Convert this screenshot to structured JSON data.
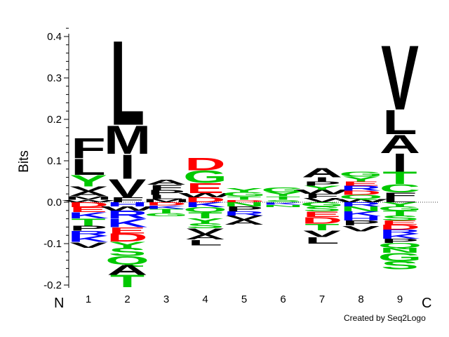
{
  "chart_data": {
    "type": "sequence-logo",
    "ylabel": "Bits",
    "ylim": [
      -0.2,
      0.4
    ],
    "yticks": [
      -0.2,
      -0.1,
      0.0,
      0.1,
      0.2,
      0.3,
      0.4
    ],
    "ytick_labels": [
      "-0.2",
      "-0.1",
      "0.0",
      "0.1",
      "0.2",
      "0.3",
      "0.4"
    ],
    "n_label": "N",
    "c_label": "C",
    "credit": "Created by Seq2Logo",
    "positions": [
      {
        "label": "1",
        "up": [
          [
            "W",
            0.006
          ],
          [
            "M",
            0.008
          ],
          [
            "A",
            0.012
          ],
          [
            "V",
            0.012
          ],
          [
            "Y",
            0.028
          ],
          [
            "L",
            0.04
          ],
          [
            "F",
            0.05
          ]
        ],
        "down": [
          [
            "D",
            -0.012
          ],
          [
            "E",
            -0.012
          ],
          [
            "K",
            -0.015
          ],
          [
            "T",
            -0.018
          ],
          [
            "P",
            -0.012
          ],
          [
            "R",
            -0.012
          ],
          [
            "K",
            -0.015
          ],
          [
            "V",
            -0.014
          ]
        ]
      },
      {
        "label": "2",
        "up": [
          [
            "F",
            0.012
          ],
          [
            "V",
            0.045
          ],
          [
            "I",
            0.06
          ],
          [
            "M",
            0.07
          ],
          [
            "L",
            0.21
          ]
        ],
        "down": [
          [
            "H",
            -0.01
          ],
          [
            "W",
            -0.01
          ],
          [
            "R",
            -0.02
          ],
          [
            "K",
            -0.02
          ],
          [
            "E",
            -0.015
          ],
          [
            "D",
            -0.02
          ],
          [
            "Y",
            -0.015
          ],
          [
            "S",
            -0.02
          ],
          [
            "Q",
            -0.02
          ],
          [
            "A",
            -0.025
          ],
          [
            "T",
            -0.03
          ]
        ]
      },
      {
        "label": "3",
        "up": [
          [
            "M",
            0.008
          ],
          [
            "L",
            0.01
          ],
          [
            "P",
            0.012
          ],
          [
            "F",
            0.012
          ],
          [
            "A",
            0.012
          ]
        ],
        "down": [
          [
            "D",
            -0.008
          ],
          [
            "K",
            -0.008
          ],
          [
            "T",
            -0.01
          ],
          [
            "G",
            -0.008
          ]
        ]
      },
      {
        "label": "4",
        "up": [
          [
            "D",
            0.012
          ],
          [
            "W",
            0.01
          ],
          [
            "E",
            0.025
          ],
          [
            "G",
            0.03
          ],
          [
            "D",
            0.03
          ]
        ],
        "down": [
          [
            "K",
            -0.012
          ],
          [
            "Q",
            -0.012
          ],
          [
            "T",
            -0.015
          ],
          [
            "Y",
            -0.012
          ],
          [
            "S",
            -0.012
          ],
          [
            "V",
            -0.015
          ],
          [
            "A",
            -0.012
          ],
          [
            "L",
            -0.014
          ]
        ]
      },
      {
        "label": "5",
        "up": [
          [
            "D",
            0.006
          ],
          [
            "T",
            0.008
          ],
          [
            "G",
            0.01
          ],
          [
            "Y",
            0.01
          ]
        ],
        "down": [
          [
            "N",
            -0.01
          ],
          [
            "P",
            -0.012
          ],
          [
            "R",
            -0.01
          ],
          [
            "V",
            -0.01
          ],
          [
            "A",
            -0.012
          ]
        ]
      },
      {
        "label": "6",
        "up": [
          [
            "S",
            0.006
          ],
          [
            "T",
            0.008
          ],
          [
            "Y",
            0.01
          ],
          [
            "G",
            0.012
          ]
        ],
        "down": [
          [
            "K",
            -0.006
          ],
          [
            "N",
            -0.006
          ]
        ]
      },
      {
        "label": "7",
        "up": [
          [
            "V",
            0.01
          ],
          [
            "F",
            0.01
          ],
          [
            "W",
            0.01
          ],
          [
            "Y",
            0.01
          ],
          [
            "P",
            0.01
          ],
          [
            "I",
            0.01
          ],
          [
            "A",
            0.022
          ]
        ],
        "down": [
          [
            "G",
            -0.01
          ],
          [
            "S",
            -0.012
          ],
          [
            "E",
            -0.014
          ],
          [
            "D",
            -0.016
          ],
          [
            "T",
            -0.016
          ],
          [
            "V",
            -0.016
          ],
          [
            "L",
            -0.016
          ]
        ]
      },
      {
        "label": "8",
        "up": [
          [
            "W",
            0.008
          ],
          [
            "Q",
            0.01
          ],
          [
            "D",
            0.01
          ],
          [
            "R",
            0.012
          ],
          [
            "E",
            0.01
          ],
          [
            "Y",
            0.012
          ],
          [
            "G",
            0.012
          ]
        ],
        "down": [
          [
            "R",
            -0.01
          ],
          [
            "N",
            -0.012
          ],
          [
            "K",
            -0.012
          ],
          [
            "H",
            -0.01
          ],
          [
            "P",
            -0.012
          ],
          [
            "V",
            -0.014
          ]
        ]
      },
      {
        "label": "9",
        "up": [
          [
            "L",
            0.01
          ],
          [
            "F",
            0.014
          ],
          [
            "C",
            0.02
          ],
          [
            "T",
            0.03
          ],
          [
            "I",
            0.045
          ],
          [
            "A",
            0.045
          ],
          [
            "L",
            0.06
          ],
          [
            "V",
            0.16
          ]
        ],
        "down": [
          [
            "Y",
            -0.01
          ],
          [
            "G",
            -0.01
          ],
          [
            "T",
            -0.012
          ],
          [
            "S",
            -0.012
          ],
          [
            "E",
            -0.01
          ],
          [
            "D",
            -0.012
          ],
          [
            "R",
            -0.01
          ],
          [
            "K",
            -0.012
          ],
          [
            "P",
            -0.01
          ],
          [
            "Q",
            -0.012
          ],
          [
            "N",
            -0.012
          ],
          [
            "G",
            -0.02
          ],
          [
            "S",
            -0.02
          ]
        ]
      }
    ],
    "colors": {
      "hydrophobic": "#000000",
      "polar": "#00c800",
      "basic": "#0000ff",
      "acidic": "#ff0000"
    }
  }
}
